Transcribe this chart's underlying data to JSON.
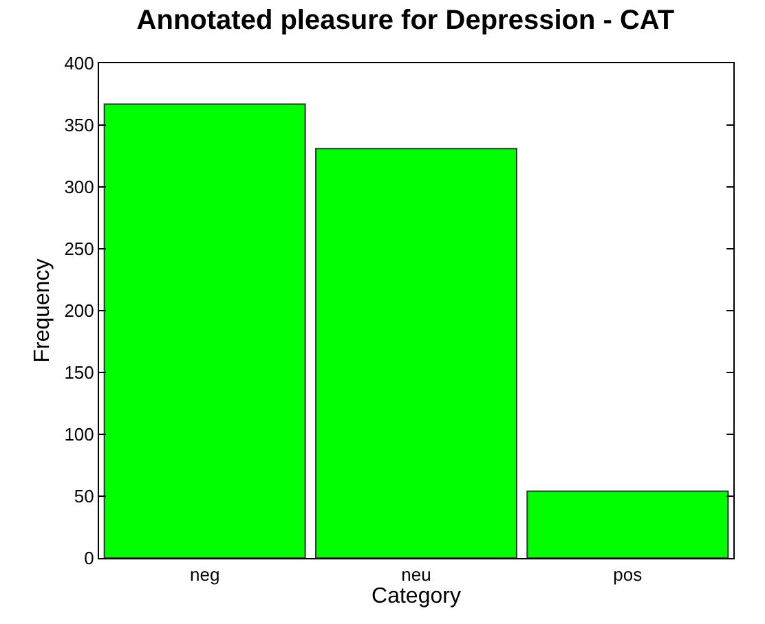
{
  "chart_data": {
    "type": "bar",
    "title": "Annotated pleasure for Depression - CAT",
    "xlabel": "Category",
    "ylabel": "Frequency",
    "categories": [
      "neg",
      "neu",
      "pos"
    ],
    "values": [
      367,
      331,
      54
    ],
    "color": "#00ff00",
    "ylim": [
      0,
      400
    ],
    "yticks": [
      0,
      50,
      100,
      150,
      200,
      250,
      300,
      350,
      400
    ],
    "grid": false
  }
}
